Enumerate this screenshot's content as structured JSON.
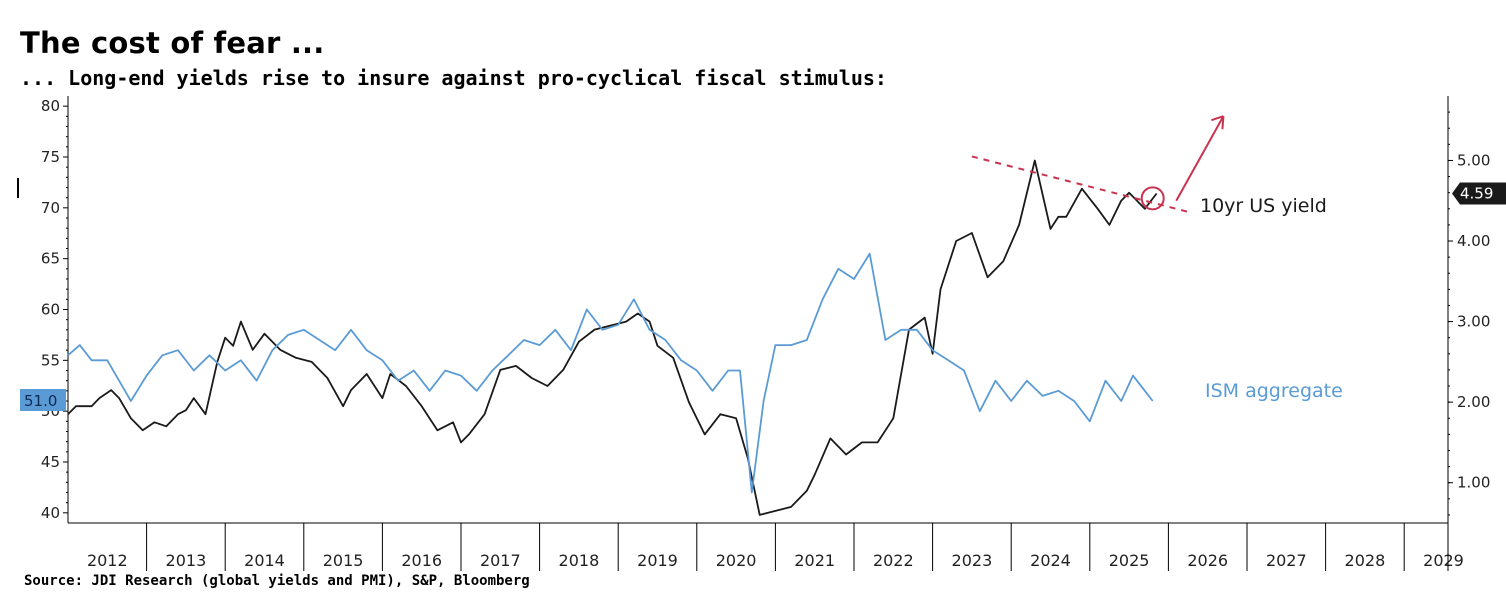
{
  "title": "The cost of fear ...",
  "subtitle": "... Long-end yields rise to insure against pro-cyclical fiscal stimulus:",
  "source": "Source: JDI Research (global yields and PMI), S&P, Bloomberg",
  "chart_data": {
    "type": "line",
    "x_categories": [
      "2012",
      "2013",
      "2014",
      "2015",
      "2016",
      "2017",
      "2018",
      "2019",
      "2020",
      "2021",
      "2022",
      "2023",
      "2024",
      "2025",
      "2026",
      "2027",
      "2028",
      "2029"
    ],
    "left_axis": {
      "ylim": [
        39,
        81
      ],
      "ticks": [
        40,
        45,
        50,
        55,
        60,
        65,
        70,
        75,
        80
      ],
      "last_value_label": "51.0"
    },
    "right_axis": {
      "ylim": [
        0.5,
        5.8
      ],
      "ticks": [
        "1.00",
        "2.00",
        "3.00",
        "4.00",
        "5.00"
      ],
      "last_value_label": "4.59"
    },
    "series": [
      {
        "name": "10yr US yield",
        "axis": "right",
        "color": "#1a1a1a",
        "x": [
          2011.5,
          2011.6,
          2011.8,
          2011.9,
          2012.05,
          2012.15,
          2012.3,
          2012.45,
          2012.6,
          2012.75,
          2012.9,
          2013.0,
          2013.1,
          2013.25,
          2013.4,
          2013.5,
          2013.6,
          2013.7,
          2013.85,
          2014.0,
          2014.2,
          2014.4,
          2014.6,
          2014.8,
          2015.0,
          2015.1,
          2015.3,
          2015.5,
          2015.6,
          2015.8,
          2016.0,
          2016.2,
          2016.4,
          2016.5,
          2016.6,
          2016.8,
          2017.0,
          2017.2,
          2017.4,
          2017.6,
          2017.8,
          2018.0,
          2018.2,
          2018.4,
          2018.6,
          2018.75,
          2018.9,
          2019.0,
          2019.2,
          2019.4,
          2019.6,
          2019.8,
          2020.0,
          2020.15,
          2020.3,
          2020.5,
          2020.7,
          2020.9,
          2021.0,
          2021.2,
          2021.4,
          2021.6,
          2021.8,
          2022.0,
          2022.2,
          2022.4,
          2022.5,
          2022.6,
          2022.8,
          2023.0,
          2023.2,
          2023.4,
          2023.6,
          2023.8,
          2024.0,
          2024.1,
          2024.2,
          2024.4,
          2024.6,
          2024.75,
          2024.9,
          2025.0,
          2025.1,
          2025.2,
          2025.35
        ],
        "values": [
          1.85,
          1.95,
          1.95,
          2.05,
          2.15,
          2.05,
          1.8,
          1.65,
          1.75,
          1.7,
          1.85,
          1.9,
          2.05,
          1.85,
          2.5,
          2.8,
          2.7,
          3.0,
          2.65,
          2.85,
          2.65,
          2.55,
          2.5,
          2.3,
          1.95,
          2.15,
          2.35,
          2.05,
          2.35,
          2.2,
          1.95,
          1.65,
          1.75,
          1.5,
          1.6,
          1.85,
          2.4,
          2.45,
          2.3,
          2.2,
          2.4,
          2.75,
          2.9,
          2.95,
          3.0,
          3.1,
          3.0,
          2.7,
          2.55,
          2.0,
          1.6,
          1.85,
          1.8,
          1.3,
          0.6,
          0.65,
          0.7,
          0.9,
          1.1,
          1.55,
          1.35,
          1.5,
          1.5,
          1.8,
          2.9,
          3.05,
          2.6,
          3.4,
          4.0,
          4.1,
          3.55,
          3.75,
          4.2,
          5.0,
          4.15,
          4.3,
          4.3,
          4.65,
          4.4,
          4.2,
          4.5,
          4.6,
          4.5,
          4.4,
          4.59
        ]
      },
      {
        "name": "ISM aggregate",
        "axis": "left",
        "color": "#5b9bd5",
        "x": [
          2011.5,
          2011.65,
          2011.8,
          2012.0,
          2012.15,
          2012.3,
          2012.5,
          2012.7,
          2012.9,
          2013.1,
          2013.3,
          2013.5,
          2013.7,
          2013.9,
          2014.1,
          2014.3,
          2014.5,
          2014.7,
          2014.9,
          2015.1,
          2015.3,
          2015.5,
          2015.7,
          2015.9,
          2016.1,
          2016.3,
          2016.5,
          2016.7,
          2016.9,
          2017.1,
          2017.3,
          2017.5,
          2017.7,
          2017.9,
          2018.1,
          2018.3,
          2018.5,
          2018.7,
          2018.9,
          2019.1,
          2019.3,
          2019.5,
          2019.7,
          2019.9,
          2020.05,
          2020.2,
          2020.35,
          2020.5,
          2020.7,
          2020.9,
          2021.1,
          2021.3,
          2021.5,
          2021.7,
          2021.9,
          2022.1,
          2022.3,
          2022.5,
          2022.7,
          2022.9,
          2023.1,
          2023.3,
          2023.5,
          2023.7,
          2023.9,
          2024.1,
          2024.3,
          2024.5,
          2024.7,
          2024.9,
          2025.05,
          2025.2,
          2025.3
        ],
        "values": [
          55.5,
          56.5,
          55,
          55,
          53,
          51,
          53.5,
          55.5,
          56,
          54,
          55.5,
          54,
          55,
          53,
          56,
          57.5,
          58,
          57,
          56,
          58,
          56,
          55,
          53,
          54,
          52,
          54,
          53.5,
          52,
          54,
          55.5,
          57,
          56.5,
          58,
          56,
          60,
          58,
          58.5,
          61,
          58,
          57,
          55,
          54,
          52,
          54,
          54,
          42,
          51,
          56.5,
          56.5,
          57,
          61,
          64,
          63,
          65.5,
          57,
          58,
          58,
          56,
          55,
          54,
          50,
          53,
          51,
          53,
          51.5,
          52,
          51,
          49,
          53,
          51,
          53.5,
          52,
          51
        ]
      }
    ],
    "annotations": {
      "yield_label": "10yr US yield",
      "ism_label": "ISM aggregate",
      "trendline_color": "#c8334f",
      "circle_color": "#c8334f",
      "arrow_color": "#c8334f"
    }
  }
}
